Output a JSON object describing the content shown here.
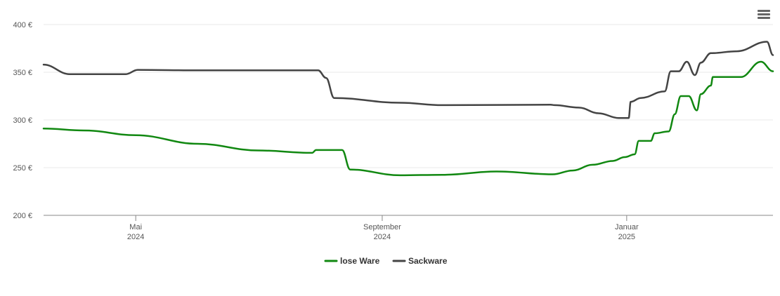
{
  "chart_data": {
    "type": "line",
    "y_currency_suffix": " €",
    "ylim": [
      200,
      400
    ],
    "yticks": [
      200,
      250,
      300,
      350,
      400
    ],
    "xlim": [
      "2024-03-16",
      "2025-03-15"
    ],
    "xticks": [
      {
        "date": "2024-05-01",
        "line1": "Mai",
        "line2": "2024"
      },
      {
        "date": "2024-09-01",
        "line1": "September",
        "line2": "2024"
      },
      {
        "date": "2025-01-01",
        "line1": "Januar",
        "line2": "2025"
      }
    ],
    "grid": true,
    "legend_position": "bottom-center",
    "series": [
      {
        "name": "lose Ware",
        "color": "#118811",
        "points": [
          [
            "2024-03-16",
            291
          ],
          [
            "2024-04-05",
            289
          ],
          [
            "2024-05-01",
            284
          ],
          [
            "2024-06-01",
            275
          ],
          [
            "2024-07-01",
            268
          ],
          [
            "2024-07-28",
            265.5
          ],
          [
            "2024-07-30",
            268.5
          ],
          [
            "2024-08-12",
            268.5
          ],
          [
            "2024-08-16",
            248
          ],
          [
            "2024-09-10",
            242
          ],
          [
            "2024-10-01",
            242.5
          ],
          [
            "2024-10-28",
            246
          ],
          [
            "2024-11-25",
            243
          ],
          [
            "2024-12-05",
            247
          ],
          [
            "2024-12-15",
            253
          ],
          [
            "2024-12-25",
            257
          ],
          [
            "2024-12-31",
            261
          ],
          [
            "2025-01-05",
            264
          ],
          [
            "2025-01-07",
            278
          ],
          [
            "2025-01-13",
            278
          ],
          [
            "2025-01-15",
            286
          ],
          [
            "2025-01-22",
            288
          ],
          [
            "2025-01-25",
            306
          ],
          [
            "2025-01-28",
            325
          ],
          [
            "2025-02-01",
            325
          ],
          [
            "2025-02-05",
            310
          ],
          [
            "2025-02-07",
            327
          ],
          [
            "2025-02-12",
            336
          ],
          [
            "2025-02-13",
            345
          ],
          [
            "2025-02-27",
            345
          ],
          [
            "2025-03-09",
            361
          ],
          [
            "2025-03-15",
            351
          ]
        ]
      },
      {
        "name": "Sackware",
        "color": "#444444",
        "points": [
          [
            "2024-03-16",
            358
          ],
          [
            "2024-03-29",
            348
          ],
          [
            "2024-04-26",
            348
          ],
          [
            "2024-05-02",
            352.5
          ],
          [
            "2024-06-01",
            352
          ],
          [
            "2024-07-31",
            352
          ],
          [
            "2024-08-04",
            344
          ],
          [
            "2024-08-08",
            323
          ],
          [
            "2024-09-10",
            318
          ],
          [
            "2024-10-01",
            315.5
          ],
          [
            "2024-11-24",
            316
          ],
          [
            "2024-11-26",
            315.5
          ],
          [
            "2024-12-08",
            313
          ],
          [
            "2024-12-18",
            307
          ],
          [
            "2024-12-28",
            302
          ],
          [
            "2025-01-02",
            302
          ],
          [
            "2025-01-03",
            319
          ],
          [
            "2025-01-08",
            323
          ],
          [
            "2025-01-20",
            330
          ],
          [
            "2025-01-23",
            351
          ],
          [
            "2025-01-27",
            351
          ],
          [
            "2025-01-31",
            361
          ],
          [
            "2025-02-04",
            347
          ],
          [
            "2025-02-07",
            360
          ],
          [
            "2025-02-12",
            370
          ],
          [
            "2025-02-25",
            372
          ],
          [
            "2025-03-12",
            382
          ],
          [
            "2025-03-15",
            368
          ]
        ]
      }
    ]
  }
}
